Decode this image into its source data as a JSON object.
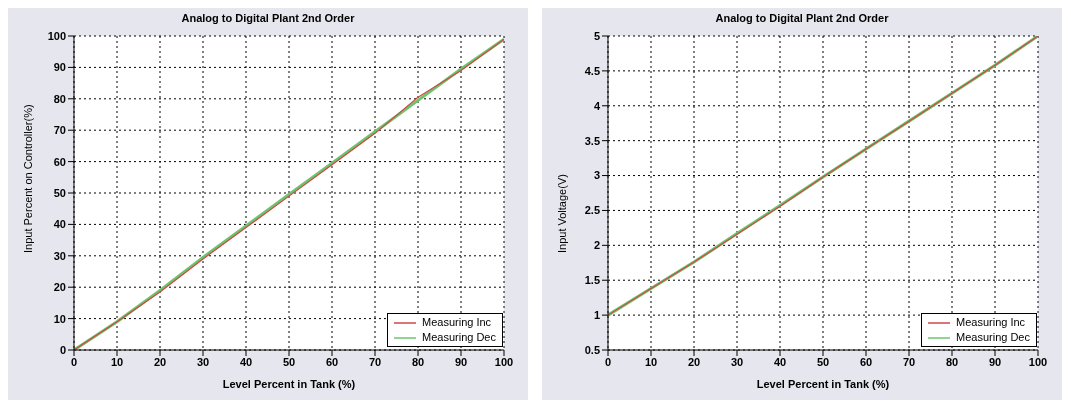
{
  "chart_data": [
    {
      "type": "line",
      "title": "Analog to Digital Plant 2nd Order",
      "xlabel": "Level Percent in Tank (%)",
      "ylabel": "Input Percent on Controller(%)",
      "x": [
        0,
        10,
        20,
        30,
        40,
        50,
        60,
        70,
        80,
        90,
        100
      ],
      "series": [
        {
          "name": "Measuring Inc",
          "color": "#d04848",
          "values": [
            0,
            9,
            18.5,
            29,
            39,
            49,
            59,
            69,
            80.5,
            89,
            99
          ]
        },
        {
          "name": "Measuring Dec",
          "color": "#6cc46c",
          "values": [
            0,
            9,
            19,
            29.5,
            39.5,
            49.5,
            59.5,
            69.5,
            79.5,
            89.5,
            99
          ]
        }
      ],
      "xlim": [
        0,
        100
      ],
      "xticks": [
        0,
        10,
        20,
        30,
        40,
        50,
        60,
        70,
        80,
        90,
        100
      ],
      "ylim": [
        0,
        100
      ],
      "yticks": [
        0,
        10,
        20,
        30,
        40,
        50,
        60,
        70,
        80,
        90,
        100
      ],
      "grid": true,
      "legend": "bottom right",
      "marker": "none",
      "line_style": "solid"
    },
    {
      "type": "line",
      "title": "Analog to Digital Plant 2nd Order",
      "xlabel": "Level Percent in Tank (%)",
      "ylabel": "Input Voltage(V)",
      "x": [
        0,
        10,
        20,
        30,
        40,
        50,
        60,
        70,
        80,
        90,
        100
      ],
      "series": [
        {
          "name": "Measuring Inc",
          "color": "#d04848",
          "values": [
            1,
            1.38,
            1.76,
            2.16,
            2.56,
            2.98,
            3.38,
            3.78,
            4.18,
            4.58,
            5
          ]
        },
        {
          "name": "Measuring Dec",
          "color": "#6cc46c",
          "values": [
            1,
            1.38,
            1.76,
            2.17,
            2.57,
            2.98,
            3.38,
            3.78,
            4.18,
            4.58,
            5
          ]
        }
      ],
      "xlim": [
        0,
        100
      ],
      "xticks": [
        0,
        10,
        20,
        30,
        40,
        50,
        60,
        70,
        80,
        90,
        100
      ],
      "ylim": [
        0.5,
        5
      ],
      "yticks": [
        0.5,
        1,
        1.5,
        2,
        2.5,
        3,
        3.5,
        4,
        4.5,
        5
      ],
      "grid": true,
      "legend": "bottom right",
      "marker": "none",
      "line_style": "solid"
    }
  ]
}
